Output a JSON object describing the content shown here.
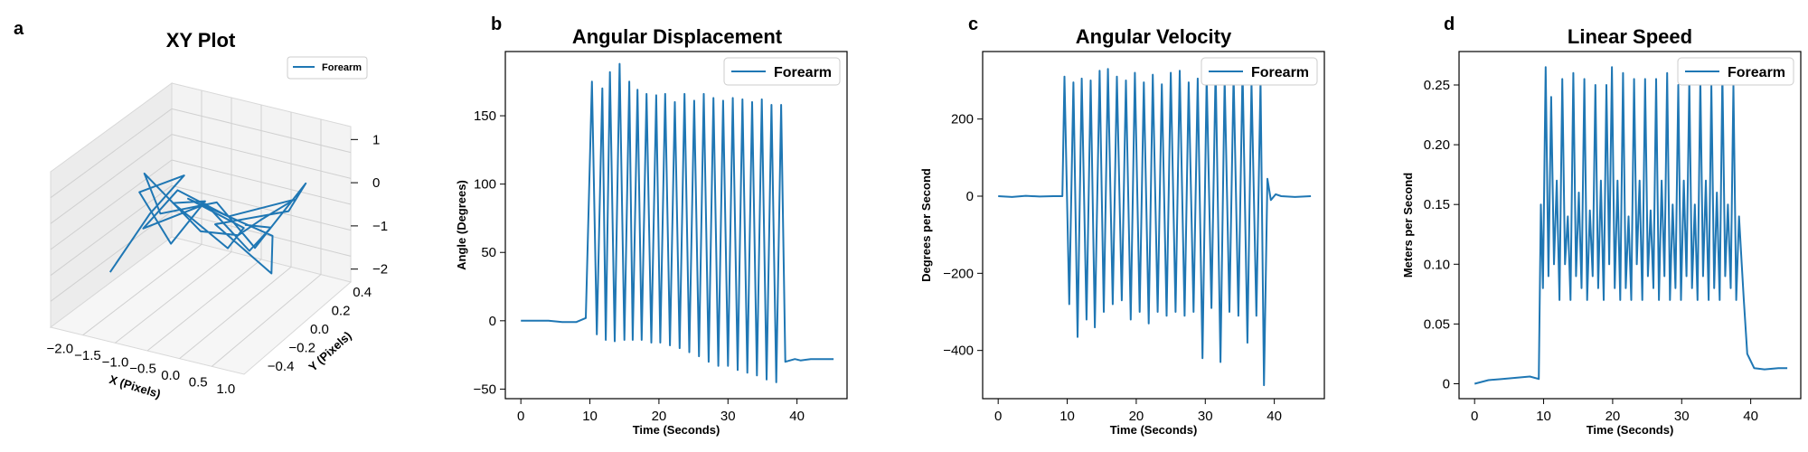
{
  "colors": {
    "series": "#1f77b4",
    "pane": "#f2f2f2"
  },
  "chart_data": [
    {
      "panel": "a",
      "type": "line",
      "projection": "3d",
      "title": "XY Plot",
      "xlabel": "X (Pixels)",
      "ylabel": "Y (Pixels)",
      "zlabel": "",
      "xticks": [
        "−2.0",
        "−1.5",
        "−1.0",
        "−0.5",
        "0.0",
        "0.5",
        "1.0"
      ],
      "yticks": [
        "−0.4",
        "−0.2",
        "0.0",
        "0.2",
        "0.4"
      ],
      "zticks": [
        "1",
        "0",
        "−1",
        "−2"
      ],
      "xlim": [
        -2.3,
        1.2
      ],
      "ylim": [
        -0.5,
        0.5
      ],
      "zlim": [
        -2.3,
        1.3
      ],
      "legend": {
        "position": "top-right",
        "entries": [
          "Forearm"
        ]
      },
      "series": [
        {
          "name": "Forearm",
          "x": [
            -2.1,
            -1.6,
            -1.2,
            -1.9,
            -1.0,
            -0.6,
            -1.4,
            -0.3,
            0.1,
            -0.8,
            0.4,
            0.6,
            -0.2,
            0.8,
            1.0,
            0.3,
            -0.5,
            -1.3,
            -1.7,
            -0.9,
            0.0,
            0.5,
            0.9,
            -0.4,
            -1.1,
            -1.5,
            -0.7,
            0.2,
            0.7,
            -0.1
          ],
          "y": [
            -0.1,
            0.0,
            0.1,
            0.05,
            -0.1,
            0.0,
            0.1,
            0.05,
            0.0,
            -0.05,
            0.1,
            0.0,
            -0.1,
            0.05,
            0.1,
            0.0,
            0.05,
            -0.05,
            0.0,
            0.1,
            0.0,
            -0.05,
            0.05,
            0.1,
            0.0,
            -0.1,
            0.05,
            0.0,
            -0.05,
            0.1
          ],
          "z": [
            -1.8,
            -0.5,
            0.3,
            -0.2,
            -0.8,
            0.1,
            -0.4,
            -1.0,
            -0.3,
            0.2,
            -0.6,
            -1.2,
            -0.1,
            0.2,
            0.8,
            -0.7,
            0.0,
            -0.3,
            0.4,
            -0.9,
            -0.5,
            0.1,
            0.5,
            -0.4,
            0.2,
            -0.6,
            -0.1,
            -0.8,
            0.0,
            -0.5
          ]
        }
      ]
    },
    {
      "panel": "b",
      "type": "line",
      "title": "Angular Displacement",
      "xlabel": "Time (Seconds)",
      "ylabel": "Angle (Degrees)",
      "xlim": [
        -2.25,
        47.25
      ],
      "ylim": [
        -57,
        197
      ],
      "xticks": [
        0,
        10,
        20,
        30,
        40
      ],
      "yticks": [
        -50,
        0,
        50,
        100,
        150
      ],
      "legend": {
        "position": "top-right",
        "entries": [
          "Forearm"
        ]
      },
      "series": [
        {
          "name": "Forearm",
          "x": [
            0,
            2,
            4,
            6,
            8,
            9.4,
            10.3,
            11.0,
            11.8,
            12.3,
            12.9,
            13.6,
            14.3,
            15.0,
            15.7,
            16.2,
            16.9,
            17.5,
            18.2,
            18.9,
            19.6,
            20.2,
            20.9,
            21.6,
            22.3,
            23.0,
            23.7,
            24.4,
            25.1,
            25.8,
            26.5,
            27.2,
            27.9,
            28.6,
            29.3,
            30.0,
            30.7,
            31.4,
            32.1,
            32.8,
            33.5,
            34.2,
            34.9,
            35.6,
            36.3,
            37.0,
            37.7,
            38.3,
            39.0,
            39.7,
            40.5,
            42,
            44,
            45.3
          ],
          "y": [
            0,
            0,
            0,
            -1,
            -1,
            2,
            175,
            -10,
            170,
            -14,
            182,
            -15,
            188,
            -14,
            175,
            -14,
            169,
            -14,
            166,
            -16,
            165,
            -16,
            166,
            -18,
            160,
            -20,
            166,
            -23,
            161,
            -26,
            166,
            -30,
            163,
            -33,
            161,
            -33,
            163,
            -36,
            162,
            -38,
            160,
            -40,
            162,
            -43,
            158,
            -45,
            158,
            -30,
            -29,
            -28,
            -29,
            -28,
            -28,
            -28
          ]
        }
      ]
    },
    {
      "panel": "c",
      "type": "line",
      "title": "Angular Velocity",
      "xlabel": "Time (Seconds)",
      "ylabel": "Degrees per Second",
      "xlim": [
        -2.25,
        47.25
      ],
      "ylim": [
        -525,
        375
      ],
      "xticks": [
        0,
        10,
        20,
        30,
        40
      ],
      "yticks": [
        -400,
        -200,
        0,
        200
      ],
      "legend": {
        "position": "top-right",
        "entries": [
          "Forearm"
        ]
      },
      "series": [
        {
          "name": "Forearm",
          "x": [
            0,
            2,
            4,
            6,
            8,
            9.3,
            9.6,
            10.3,
            10.9,
            11.5,
            12.1,
            12.8,
            13.4,
            14.0,
            14.7,
            15.3,
            15.9,
            16.6,
            17.2,
            17.9,
            18.5,
            19.2,
            19.8,
            20.5,
            21.1,
            21.8,
            22.4,
            23.1,
            23.7,
            24.4,
            25.0,
            25.7,
            26.3,
            27.0,
            27.6,
            28.3,
            28.9,
            29.6,
            30.2,
            30.9,
            31.5,
            32.2,
            32.8,
            33.5,
            34.1,
            34.8,
            35.4,
            36.1,
            36.7,
            37.4,
            38.0,
            38.5,
            39.0,
            39.5,
            40.2,
            41,
            43,
            45.3
          ],
          "y": [
            0,
            -2,
            1,
            -1,
            0,
            0,
            310,
            -280,
            295,
            -365,
            305,
            -320,
            300,
            -340,
            325,
            -300,
            330,
            -280,
            310,
            -270,
            300,
            -320,
            320,
            -300,
            295,
            -330,
            315,
            -300,
            290,
            -310,
            320,
            -300,
            325,
            -310,
            295,
            -300,
            305,
            -420,
            310,
            -290,
            330,
            -430,
            305,
            -300,
            315,
            -310,
            330,
            -380,
            295,
            -310,
            300,
            -490,
            45,
            -10,
            5,
            0,
            -2,
            0
          ]
        }
      ]
    },
    {
      "panel": "d",
      "type": "line",
      "title": "Linear Speed",
      "xlabel": "Time (Seconds)",
      "ylabel": "Meters per Second",
      "xlim": [
        -2.25,
        47.25
      ],
      "ylim": [
        -0.0125,
        0.278
      ],
      "xticks": [
        0,
        10,
        20,
        30,
        40
      ],
      "yticks": [
        0.0,
        0.05,
        0.1,
        0.15,
        0.2,
        0.25
      ],
      "legend": {
        "position": "top-right",
        "entries": [
          "Forearm"
        ]
      },
      "series": [
        {
          "name": "Forearm",
          "x": [
            0,
            2,
            4,
            6,
            8,
            9.3,
            9.6,
            9.9,
            10.3,
            10.7,
            11.1,
            11.5,
            11.9,
            12.3,
            12.7,
            13.1,
            13.5,
            13.9,
            14.3,
            14.7,
            15.1,
            15.5,
            15.9,
            16.3,
            16.7,
            17.1,
            17.5,
            17.9,
            18.3,
            18.7,
            19.1,
            19.5,
            19.9,
            20.3,
            20.7,
            21.1,
            21.5,
            21.9,
            22.3,
            22.7,
            23.1,
            23.5,
            23.9,
            24.3,
            24.7,
            25.1,
            25.5,
            25.9,
            26.3,
            26.7,
            27.1,
            27.5,
            27.9,
            28.3,
            28.7,
            29.1,
            29.5,
            29.9,
            30.3,
            30.7,
            31.1,
            31.5,
            31.9,
            32.3,
            32.7,
            33.1,
            33.5,
            33.9,
            34.3,
            34.7,
            35.1,
            35.5,
            35.9,
            36.3,
            36.7,
            37.1,
            37.5,
            37.9,
            38.3,
            38.7,
            39.0,
            39.5,
            40.5,
            42,
            44,
            45.3
          ],
          "y": [
            0.0,
            0.003,
            0.004,
            0.005,
            0.006,
            0.004,
            0.15,
            0.08,
            0.265,
            0.09,
            0.24,
            0.1,
            0.17,
            0.07,
            0.255,
            0.1,
            0.14,
            0.07,
            0.26,
            0.09,
            0.16,
            0.08,
            0.255,
            0.07,
            0.145,
            0.09,
            0.25,
            0.08,
            0.17,
            0.07,
            0.25,
            0.1,
            0.265,
            0.08,
            0.17,
            0.07,
            0.26,
            0.08,
            0.14,
            0.07,
            0.255,
            0.1,
            0.17,
            0.07,
            0.255,
            0.09,
            0.145,
            0.08,
            0.255,
            0.07,
            0.17,
            0.09,
            0.26,
            0.07,
            0.15,
            0.08,
            0.25,
            0.07,
            0.17,
            0.09,
            0.255,
            0.08,
            0.15,
            0.07,
            0.255,
            0.09,
            0.17,
            0.07,
            0.25,
            0.08,
            0.16,
            0.07,
            0.26,
            0.09,
            0.15,
            0.08,
            0.25,
            0.07,
            0.14,
            0.1,
            0.07,
            0.025,
            0.013,
            0.012,
            0.013,
            0.013
          ]
        }
      ]
    }
  ],
  "panels": {
    "a": {
      "label": "a",
      "title": "XY Plot",
      "legend": "Forearm",
      "xlabel": "X (Pixels)",
      "ylabel": "Y (Pixels)"
    },
    "b": {
      "label": "b",
      "title": "Angular Displacement",
      "legend": "Forearm",
      "xlabel": "Time (Seconds)",
      "ylabel": "Angle (Degrees)"
    },
    "c": {
      "label": "c",
      "title": "Angular Velocity",
      "legend": "Forearm",
      "xlabel": "Time (Seconds)",
      "ylabel": "Degrees per Second"
    },
    "d": {
      "label": "d",
      "title": "Linear Speed",
      "legend": "Forearm",
      "xlabel": "Time (Seconds)",
      "ylabel": "Meters per Second"
    }
  }
}
